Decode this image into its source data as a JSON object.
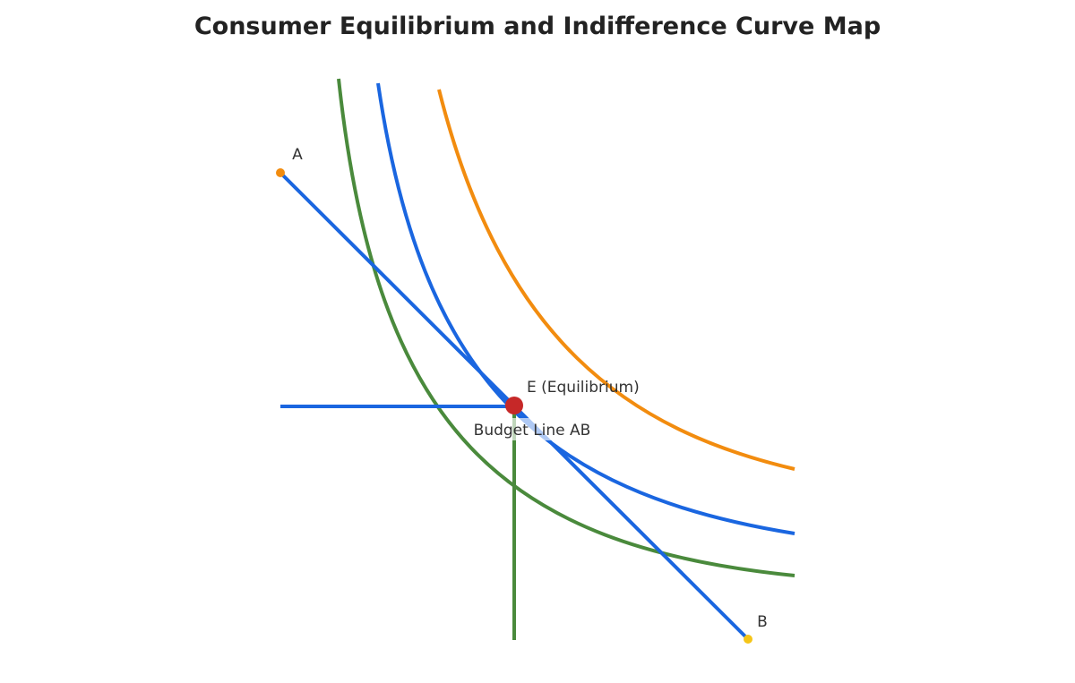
{
  "title": "Consumer Equilibrium and Indifference Curve Map",
  "labels": {
    "a": "A",
    "b": "B",
    "e": "E (Equilibrium)",
    "budget": "Budget Line AB"
  }
}
